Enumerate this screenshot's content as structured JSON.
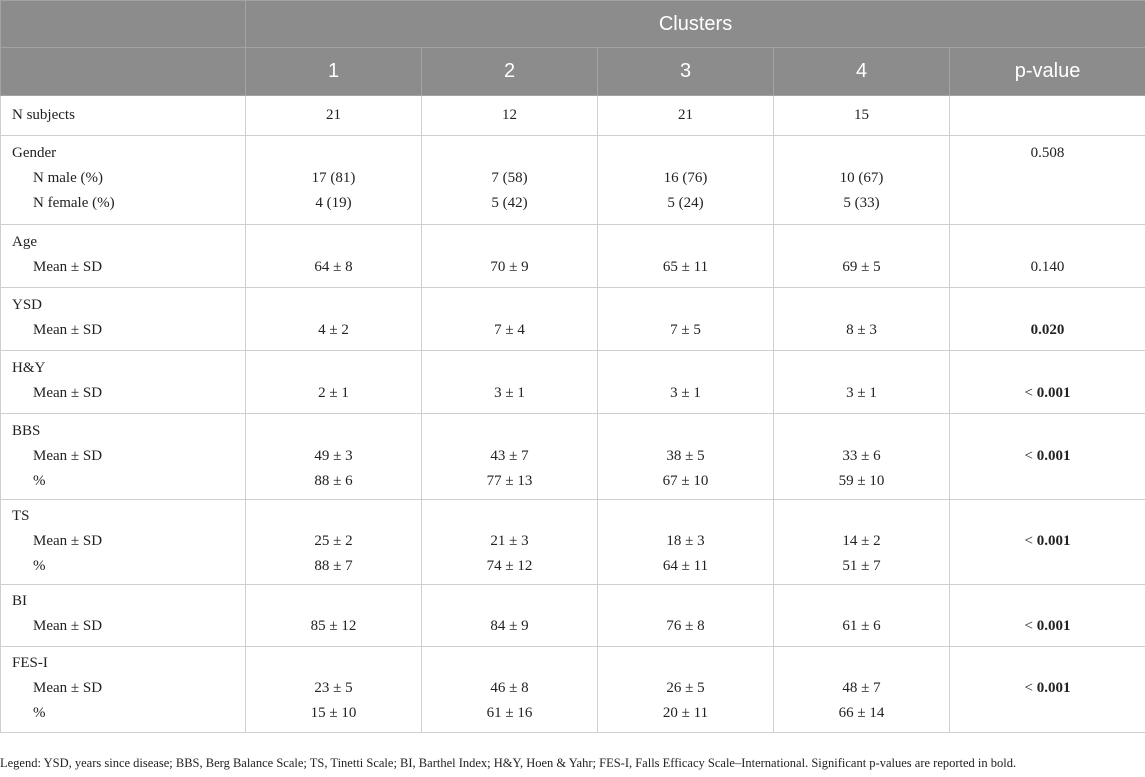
{
  "header": {
    "group_label": "Clusters",
    "cols": [
      "1",
      "2",
      "3",
      "4"
    ],
    "pvalue_label": "p-value"
  },
  "rows": [
    {
      "label": "N subjects",
      "sub": [],
      "values": [
        [
          "21"
        ],
        [
          "12"
        ],
        [
          "21"
        ],
        [
          "15"
        ]
      ],
      "p": "",
      "p_bold": false
    },
    {
      "label": "Gender",
      "sub": [
        "N male (%)",
        "N female (%)"
      ],
      "values": [
        [
          "17 (81)",
          "4 (19)"
        ],
        [
          "7 (58)",
          "5 (42)"
        ],
        [
          "16 (76)",
          "5 (24)"
        ],
        [
          "10 (67)",
          "5 (33)"
        ]
      ],
      "p": "0.508",
      "p_bold": false
    },
    {
      "label": "Age",
      "sub": [
        "Mean ± SD"
      ],
      "values": [
        [
          "64 ± 8"
        ],
        [
          "70 ± 9"
        ],
        [
          "65 ± 11"
        ],
        [
          "69 ± 5"
        ]
      ],
      "p": "0.140",
      "p_bold": false
    },
    {
      "label": "YSD",
      "sub": [
        "Mean ± SD"
      ],
      "values": [
        [
          "4 ± 2"
        ],
        [
          "7 ± 4"
        ],
        [
          "7 ± 5"
        ],
        [
          "8 ± 3"
        ]
      ],
      "p": "0.020",
      "p_bold": true
    },
    {
      "label": "H&Y",
      "sub": [
        "Mean ± SD"
      ],
      "values": [
        [
          "2 ± 1"
        ],
        [
          "3 ± 1"
        ],
        [
          "3 ± 1"
        ],
        [
          "3 ± 1"
        ]
      ],
      "p_prefix": "< ",
      "p": "0.001",
      "p_bold": true
    },
    {
      "label": "BBS",
      "sub": [
        "Mean ± SD",
        "%"
      ],
      "values": [
        [
          "49 ± 3",
          "88 ± 6"
        ],
        [
          "43 ± 7",
          "77 ± 13"
        ],
        [
          "38 ± 5",
          "67 ± 10"
        ],
        [
          "33 ± 6",
          "59 ± 10"
        ]
      ],
      "p_prefix": "< ",
      "p": "0.001",
      "p_bold": true
    },
    {
      "label": "TS",
      "sub": [
        "Mean ± SD",
        "%"
      ],
      "values": [
        [
          "25 ± 2",
          "88 ± 7"
        ],
        [
          "21 ± 3",
          "74 ± 12"
        ],
        [
          "18 ± 3",
          "64 ± 11"
        ],
        [
          "14 ± 2",
          "51 ± 7"
        ]
      ],
      "p_prefix": "< ",
      "p": "0.001",
      "p_bold": true
    },
    {
      "label": "BI",
      "sub": [
        "Mean ± SD"
      ],
      "values": [
        [
          "85 ± 12"
        ],
        [
          "84 ± 9"
        ],
        [
          "76 ± 8"
        ],
        [
          "61 ± 6"
        ]
      ],
      "p_prefix": "< ",
      "p": "0.001",
      "p_bold": true
    },
    {
      "label": "FES-I",
      "sub": [
        "Mean ± SD",
        "%"
      ],
      "values": [
        [
          "23 ± 5",
          "15 ± 10"
        ],
        [
          "46 ± 8",
          "61 ± 16"
        ],
        [
          "26 ± 5",
          "20 ± 11"
        ],
        [
          "48 ± 7",
          "66 ± 14"
        ]
      ],
      "p_prefix": "< ",
      "p": "0.001",
      "p_bold": true
    }
  ],
  "legend": "Legend: YSD, years since disease; BBS, Berg Balance Scale; TS, Tinetti Scale; BI, Barthel Index; H&Y, Hoen & Yahr; FES-I, Falls Efficacy Scale–International. Significant p-values are reported in bold."
}
